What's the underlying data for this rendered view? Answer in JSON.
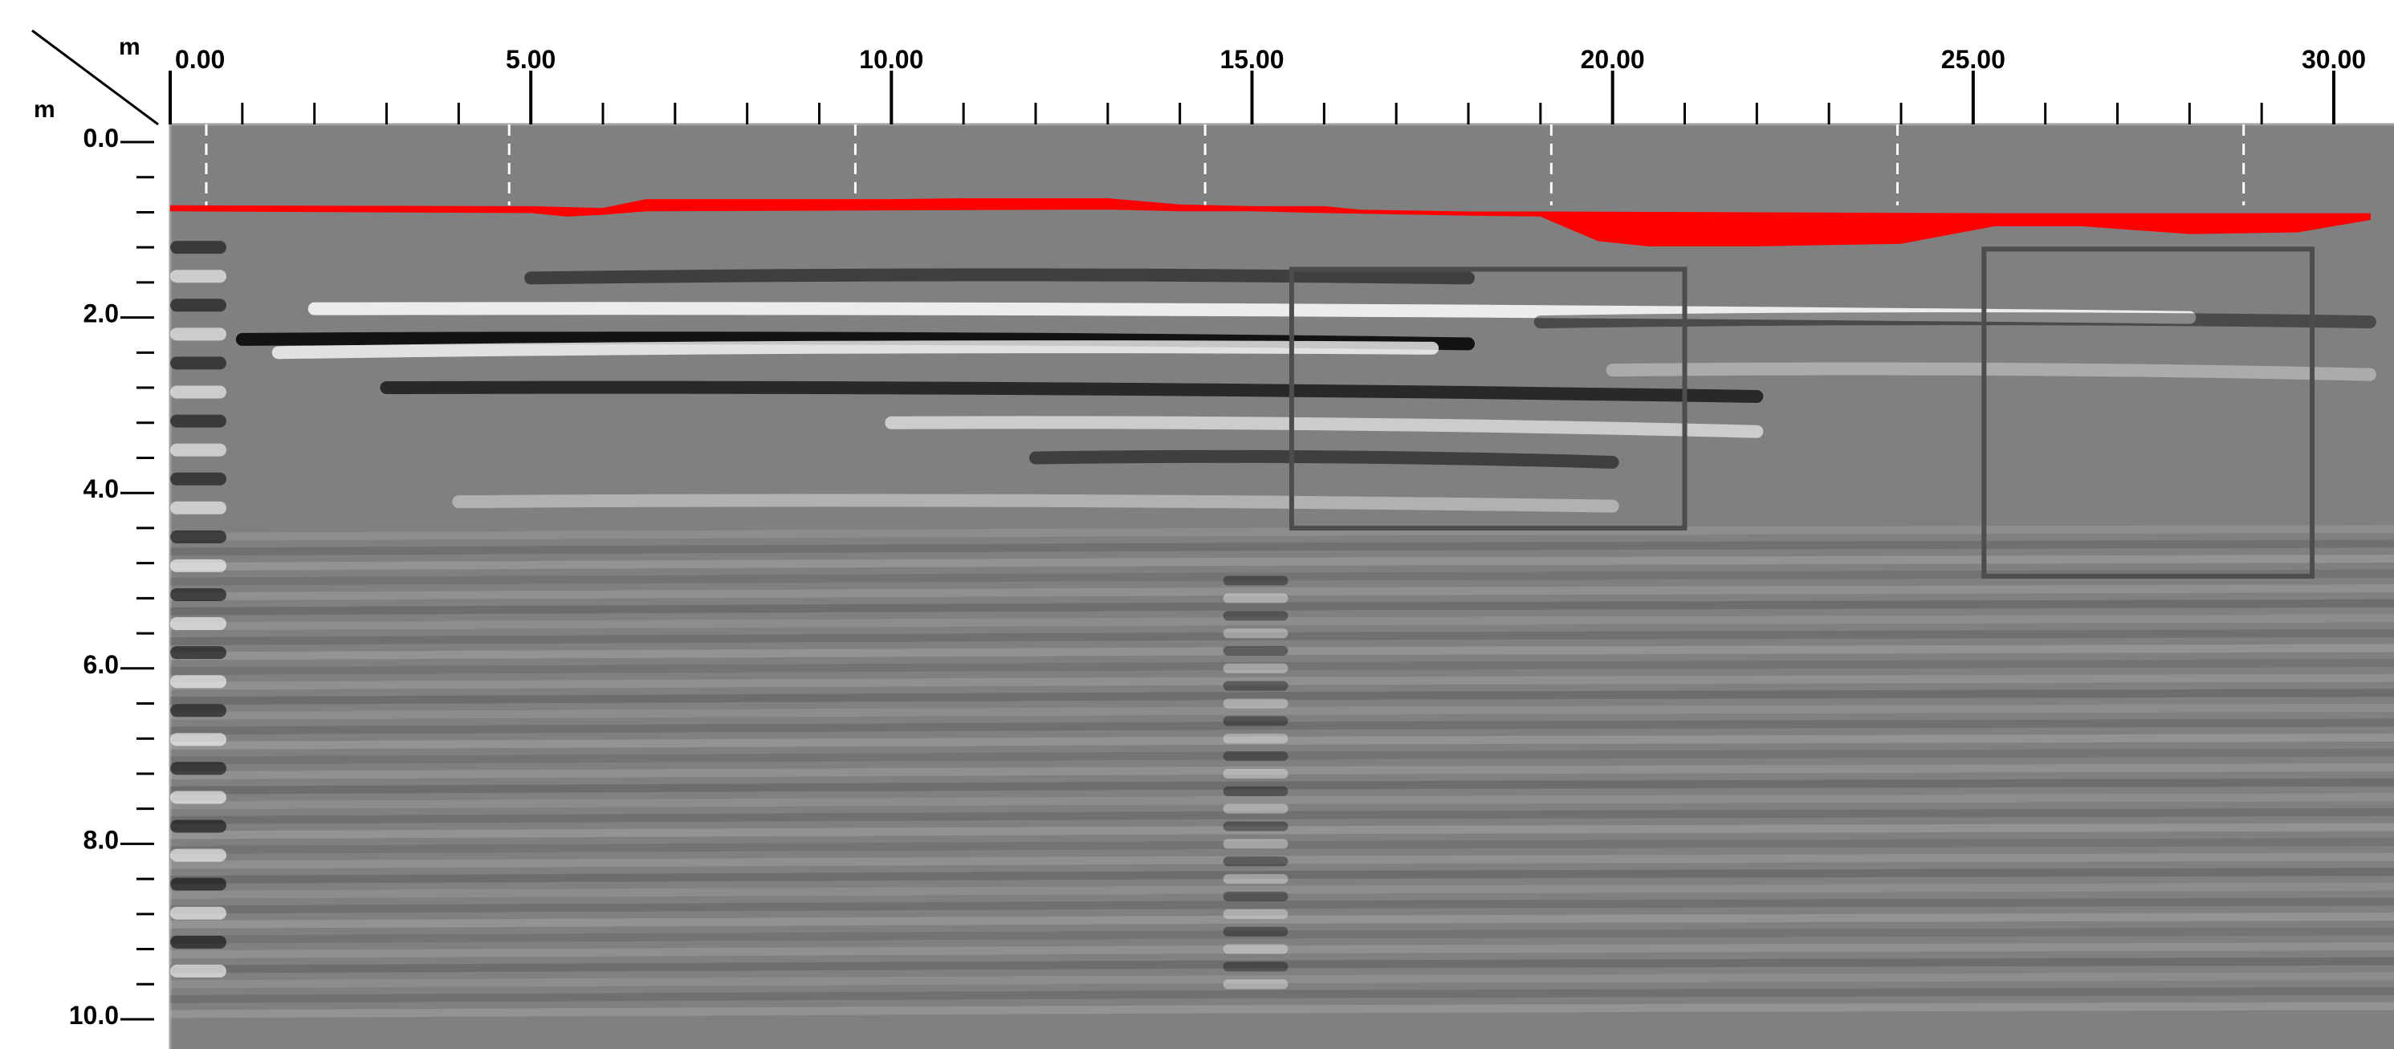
{
  "chart_data": {
    "type": "heatmap",
    "title": "",
    "x_unit": "m",
    "y_unit": "m",
    "xlim": [
      0,
      30.5
    ],
    "ylim": [
      0,
      10
    ],
    "x_tick_labels": [
      "0.00",
      "5.00",
      "10.00",
      "15.00",
      "20.00",
      "25.00",
      "30.00"
    ],
    "x_tick_values": [
      0,
      5,
      10,
      15,
      20,
      25,
      30
    ],
    "x_minor_step": 1,
    "y_tick_labels": [
      "0.0",
      "2.0",
      "4.0",
      "6.0",
      "8.0",
      "10.0"
    ],
    "y_tick_values": [
      0,
      2,
      4,
      6,
      8,
      10
    ],
    "y_minor_step": 0.4,
    "dashed_markers_x": [
      0.5,
      4.7,
      9.5,
      14.35,
      19.15,
      23.95,
      28.75
    ],
    "interface_line": {
      "color": "#ff0000",
      "top_m": [
        [
          0,
          0.73
        ],
        [
          5,
          0.74
        ],
        [
          6,
          0.76
        ],
        [
          6.6,
          0.66
        ],
        [
          10,
          0.66
        ],
        [
          11,
          0.65
        ],
        [
          13,
          0.65
        ],
        [
          14,
          0.72
        ],
        [
          15,
          0.74
        ],
        [
          16,
          0.74
        ],
        [
          16.5,
          0.78
        ],
        [
          18,
          0.8
        ],
        [
          19,
          0.8
        ],
        [
          25.3,
          0.82
        ],
        [
          27,
          0.82
        ],
        [
          30.5,
          0.82
        ]
      ],
      "bottom_m": [
        [
          0,
          0.78
        ],
        [
          5,
          0.8
        ],
        [
          5.5,
          0.84
        ],
        [
          6,
          0.82
        ],
        [
          6.6,
          0.78
        ],
        [
          10,
          0.77
        ],
        [
          13,
          0.76
        ],
        [
          14,
          0.78
        ],
        [
          15,
          0.78
        ],
        [
          16,
          0.8
        ],
        [
          18,
          0.83
        ],
        [
          19,
          0.84
        ],
        [
          19.8,
          1.12
        ],
        [
          20.5,
          1.18
        ],
        [
          22,
          1.18
        ],
        [
          24,
          1.15
        ],
        [
          25.3,
          0.95
        ],
        [
          26.5,
          0.95
        ],
        [
          28,
          1.04
        ],
        [
          29.5,
          1.02
        ],
        [
          30.5,
          0.88
        ]
      ]
    },
    "anomaly_boxes": [
      {
        "x0": 15.55,
        "x1": 21.0,
        "y0": 1.45,
        "y1": 4.4
      },
      {
        "x0": 25.15,
        "x1": 29.7,
        "y0": 1.22,
        "y1": 4.95
      }
    ],
    "reflectors": [
      {
        "depth": 1.9,
        "amp": 1.0,
        "x0": 2.0,
        "x1": 28.0,
        "dip": 0.1
      },
      {
        "depth": 2.25,
        "amp": -1.0,
        "x0": 1.0,
        "x1": 18.0,
        "dip": 0.05
      },
      {
        "depth": 2.4,
        "amp": 0.9,
        "x0": 1.5,
        "x1": 17.5,
        "dip": -0.05
      },
      {
        "depth": 2.8,
        "amp": -0.8,
        "x0": 3.0,
        "x1": 22.0,
        "dip": 0.1
      },
      {
        "depth": 3.2,
        "amp": 0.7,
        "x0": 10.0,
        "x1": 22.0,
        "dip": 0.1
      },
      {
        "depth": 3.6,
        "amp": -0.6,
        "x0": 12.0,
        "x1": 20.0,
        "dip": 0.05
      },
      {
        "depth": 4.1,
        "amp": 0.45,
        "x0": 4.0,
        "x1": 20.0,
        "dip": 0.05
      },
      {
        "depth": 1.55,
        "amp": -0.6,
        "x0": 5.0,
        "x1": 18.0,
        "dip": 0.0
      },
      {
        "depth": 2.05,
        "amp": -0.5,
        "x0": 19.0,
        "x1": 30.5,
        "dip": 0.0
      },
      {
        "depth": 2.6,
        "amp": 0.4,
        "x0": 20.0,
        "x1": 30.5,
        "dip": 0.05
      }
    ],
    "colors": {
      "background_gray": "#808080",
      "interface": "#ff0000",
      "box_stroke": "#4d4d4d",
      "axis": "#000000"
    }
  }
}
